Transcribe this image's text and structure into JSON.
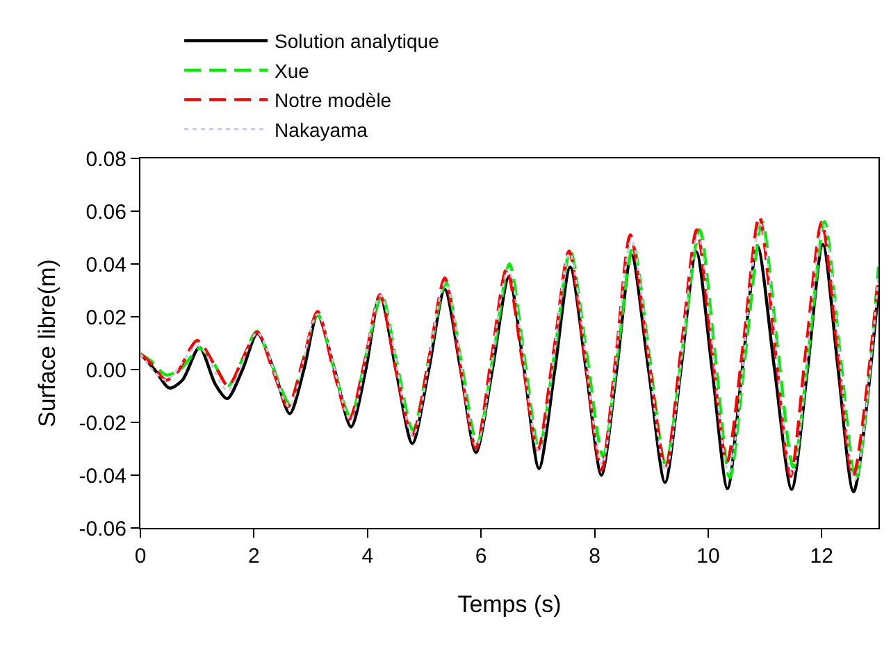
{
  "chart_data": {
    "type": "line",
    "xlabel": "Temps (s)",
    "ylabel": "Surface libre(m)",
    "xlim": [
      0,
      13
    ],
    "xticks": [
      0,
      2,
      4,
      6,
      8,
      10,
      12
    ],
    "ylim": [
      -0.06,
      0.08
    ],
    "yticks": [
      {
        "value": -0.06,
        "label": "-0.06"
      },
      {
        "value": -0.04,
        "label": "-0.04"
      },
      {
        "value": -0.02,
        "label": "-0.02"
      },
      {
        "value": 0,
        "label": "0.00"
      },
      {
        "value": 0.02,
        "label": "0.02"
      },
      {
        "value": 0.04,
        "label": "0.04"
      },
      {
        "value": 0.06,
        "label": "0.06"
      },
      {
        "value": 0.08,
        "label": "0.08"
      }
    ],
    "grid": false,
    "legend": "top",
    "marker": "none",
    "series": [
      {
        "name": "Solution analytique",
        "color": "#000000",
        "line_style": "solid",
        "x": [
          0,
          0.25,
          0.51,
          0.74,
          1.04,
          1.32,
          1.53,
          1.8,
          2.06,
          2.35,
          2.63,
          2.88,
          3.12,
          3.42,
          3.71,
          3.97,
          4.22,
          4.5,
          4.79,
          5.08,
          5.36,
          5.64,
          5.91,
          6.2,
          6.49,
          6.76,
          7.02,
          7.3,
          7.57,
          7.85,
          8.12,
          8.39,
          8.65,
          8.95,
          9.24,
          9.52,
          9.79,
          10.07,
          10.34,
          10.6,
          10.87,
          11.17,
          11.47,
          11.75,
          12.02,
          12.29,
          12.56,
          13
        ],
        "values": [
          0.006,
          0,
          -0.007,
          -0.004,
          0.0084,
          -0.0056,
          -0.011,
          0,
          0.0137,
          0,
          -0.0167,
          0,
          0.0207,
          0,
          -0.0217,
          0,
          0.028,
          0,
          -0.028,
          0,
          0.0304,
          0,
          -0.0314,
          0,
          0.035,
          0,
          -0.0375,
          0,
          0.0388,
          0,
          -0.04,
          0,
          0.0435,
          0,
          -0.0428,
          0,
          0.0447,
          0,
          -0.0451,
          0,
          0.0467,
          0,
          -0.0454,
          0,
          0.0474,
          0,
          -0.0463,
          0.031
        ]
      },
      {
        "name": "Xue",
        "color": "#00ee00",
        "line_style": "dashed",
        "x": [
          0,
          0.2,
          0.45,
          0.7,
          1.05,
          1.3,
          1.55,
          1.8,
          2.05,
          2.33,
          2.62,
          2.87,
          3.12,
          3.4,
          3.7,
          3.97,
          4.25,
          4.52,
          4.8,
          5.09,
          5.38,
          5.65,
          5.93,
          6.22,
          6.5,
          6.76,
          7.02,
          7.3,
          7.57,
          7.86,
          8.15,
          8.41,
          8.68,
          8.96,
          9.25,
          9.55,
          9.85,
          10.12,
          10.38,
          10.66,
          10.95,
          11.22,
          11.5,
          11.78,
          12.05,
          12.32,
          12.6,
          13
        ],
        "values": [
          0.006,
          0.003,
          -0.002,
          0,
          0.008,
          0.002,
          -0.006,
          0.004,
          0.0145,
          0.001,
          -0.0125,
          0.004,
          0.021,
          0.001,
          -0.018,
          0.005,
          0.028,
          0.002,
          -0.023,
          0.005,
          0.033,
          0.003,
          -0.028,
          0.006,
          0.04,
          0.005,
          -0.03,
          0.007,
          0.045,
          0.006,
          -0.033,
          0.007,
          0.047,
          0.006,
          -0.036,
          0.008,
          0.053,
          0.006,
          -0.041,
          0.007,
          0.056,
          0.009,
          -0.037,
          0.009,
          0.056,
          0.007,
          -0.042,
          0.039
        ]
      },
      {
        "name": "Notre modèle",
        "color": "#ff0000",
        "line_style": "dashed",
        "x": [
          0,
          0.2,
          0.45,
          0.65,
          1,
          1.3,
          1.55,
          1.8,
          2.06,
          2.33,
          2.6,
          2.86,
          3.12,
          3.4,
          3.68,
          3.95,
          4.22,
          4.5,
          4.79,
          5.08,
          5.36,
          5.63,
          5.91,
          6.18,
          6.45,
          6.73,
          7,
          7.28,
          7.55,
          7.84,
          8.12,
          8.38,
          8.63,
          8.94,
          9.25,
          9.52,
          9.8,
          10.06,
          10.33,
          10.62,
          10.9,
          11.18,
          11.45,
          11.72,
          12,
          12.28,
          12.55,
          13
        ],
        "values": [
          0.006,
          0.002,
          -0.004,
          -0.001,
          0.011,
          0.002,
          -0.0063,
          0.004,
          0.0142,
          0,
          -0.014,
          0.003,
          0.022,
          0,
          -0.0188,
          0.003,
          0.0284,
          0,
          -0.0248,
          0.004,
          0.0347,
          0.002,
          -0.0298,
          0.004,
          0.0382,
          0.003,
          -0.0305,
          0.007,
          0.0449,
          0.003,
          -0.038,
          0.006,
          0.051,
          0.006,
          -0.037,
          0.007,
          0.053,
          0.008,
          -0.035,
          0.01,
          0.058,
          0.008,
          -0.0405,
          0.007,
          0.0558,
          0.007,
          -0.0405,
          0.035
        ]
      },
      {
        "name": "Nakayama",
        "color": "#c8c8f0",
        "line_style": "dotted",
        "x": [
          0,
          0.45,
          1.02,
          1.54,
          2.06,
          2.62,
          3.12,
          3.7,
          4.23,
          4.8,
          5.37,
          5.92,
          6.48,
          7.02,
          7.56,
          8.13,
          8.65,
          9.25,
          9.82,
          10.36,
          10.92,
          11.48,
          12.03,
          12.58,
          13
        ],
        "values": [
          0.006,
          -0.004,
          0.009,
          -0.008,
          0.014,
          -0.014,
          0.021,
          -0.019,
          0.028,
          -0.025,
          0.033,
          -0.029,
          0.038,
          -0.031,
          0.044,
          -0.036,
          0.049,
          -0.038,
          0.051,
          -0.039,
          0.055,
          -0.04,
          0.055,
          -0.042,
          0.036
        ]
      }
    ]
  }
}
